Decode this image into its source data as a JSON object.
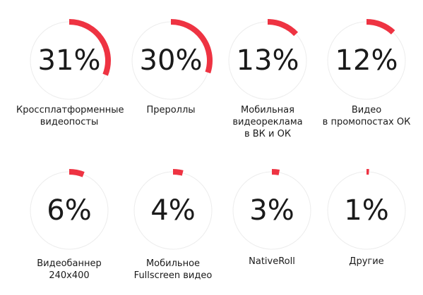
{
  "colors": {
    "arc": "#ee3342",
    "track": "#ececec",
    "text": "#1a1a1a"
  },
  "chart_data": {
    "type": "pie",
    "items": [
      {
        "value": 31,
        "display": "31%",
        "label_lines": [
          "Кроссплатформенные",
          "видеопосты"
        ]
      },
      {
        "value": 30,
        "display": "30%",
        "label_lines": [
          "Прероллы"
        ]
      },
      {
        "value": 13,
        "display": "13%",
        "label_lines": [
          "Мобильная",
          "видеореклама",
          "в ВК и ОК"
        ]
      },
      {
        "value": 12,
        "display": "12%",
        "label_lines": [
          "Видео",
          "в промопостах ОК"
        ]
      },
      {
        "value": 6,
        "display": "6%",
        "label_lines": [
          "Видеобаннер",
          "240x400"
        ]
      },
      {
        "value": 4,
        "display": "4%",
        "label_lines": [
          "Мобильное",
          "Fullscreen видео"
        ]
      },
      {
        "value": 3,
        "display": "3%",
        "label_lines": [
          "NativeRoll"
        ]
      },
      {
        "value": 1,
        "display": "1%",
        "label_lines": [
          "Другие"
        ]
      }
    ]
  }
}
